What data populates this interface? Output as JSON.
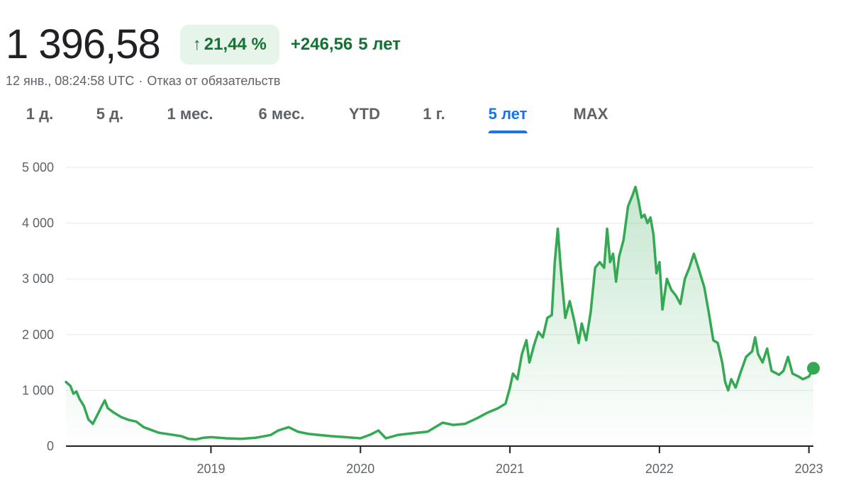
{
  "header": {
    "price": "1 396,58",
    "change_arrow": "↑",
    "change_pct": "21,44 %",
    "change_abs": "+246,56",
    "change_period": "5 лет"
  },
  "subline": {
    "timestamp": "12 янв., 08:24:58 UTC",
    "separator": "·",
    "disclaimer": "Отказ от обязательств"
  },
  "tabs": [
    {
      "label": "1 д.",
      "active": false
    },
    {
      "label": "5 д.",
      "active": false
    },
    {
      "label": "1 мес.",
      "active": false
    },
    {
      "label": "6 мес.",
      "active": false
    },
    {
      "label": "YTD",
      "active": false
    },
    {
      "label": "1 г.",
      "active": false
    },
    {
      "label": "5 лет",
      "active": true
    },
    {
      "label": "MAX",
      "active": false
    }
  ],
  "colors": {
    "line": "#34a853",
    "up_text": "#137333",
    "badge_bg": "#e6f4ea",
    "active_tab": "#1a73e8",
    "grid": "#e8eaed",
    "axis": "#202124"
  },
  "chart_data": {
    "type": "area",
    "title": "",
    "xlabel": "",
    "ylabel": "",
    "ylim": [
      0,
      5000
    ],
    "xlim": [
      2018.03,
      2023.03
    ],
    "y_ticks": [
      {
        "value": 0,
        "label": "0"
      },
      {
        "value": 1000,
        "label": "1 000"
      },
      {
        "value": 2000,
        "label": "2 000"
      },
      {
        "value": 3000,
        "label": "3 000"
      },
      {
        "value": 4000,
        "label": "4 000"
      },
      {
        "value": 5000,
        "label": "5 000"
      }
    ],
    "x_ticks": [
      {
        "value": 2019,
        "label": "2019"
      },
      {
        "value": 2020,
        "label": "2020"
      },
      {
        "value": 2021,
        "label": "2021"
      },
      {
        "value": 2022,
        "label": "2022"
      },
      {
        "value": 2023,
        "label": "2023"
      }
    ],
    "grid": true,
    "series": [
      {
        "values": [
          [
            2018.03,
            1150
          ],
          [
            2018.06,
            1080
          ],
          [
            2018.08,
            940
          ],
          [
            2018.1,
            980
          ],
          [
            2018.12,
            850
          ],
          [
            2018.15,
            720
          ],
          [
            2018.18,
            480
          ],
          [
            2018.21,
            400
          ],
          [
            2018.24,
            560
          ],
          [
            2018.27,
            720
          ],
          [
            2018.29,
            820
          ],
          [
            2018.31,
            680
          ],
          [
            2018.35,
            600
          ],
          [
            2018.4,
            520
          ],
          [
            2018.45,
            470
          ],
          [
            2018.5,
            440
          ],
          [
            2018.55,
            340
          ],
          [
            2018.6,
            290
          ],
          [
            2018.65,
            240
          ],
          [
            2018.7,
            220
          ],
          [
            2018.75,
            200
          ],
          [
            2018.8,
            180
          ],
          [
            2018.85,
            130
          ],
          [
            2018.9,
            120
          ],
          [
            2018.95,
            150
          ],
          [
            2019.0,
            160
          ],
          [
            2019.1,
            140
          ],
          [
            2019.2,
            130
          ],
          [
            2019.3,
            150
          ],
          [
            2019.4,
            200
          ],
          [
            2019.45,
            280
          ],
          [
            2019.52,
            340
          ],
          [
            2019.58,
            260
          ],
          [
            2019.65,
            220
          ],
          [
            2019.72,
            200
          ],
          [
            2019.8,
            180
          ],
          [
            2019.9,
            160
          ],
          [
            2020.0,
            140
          ],
          [
            2020.07,
            210
          ],
          [
            2020.12,
            280
          ],
          [
            2020.17,
            140
          ],
          [
            2020.25,
            200
          ],
          [
            2020.35,
            230
          ],
          [
            2020.45,
            260
          ],
          [
            2020.55,
            420
          ],
          [
            2020.62,
            380
          ],
          [
            2020.7,
            400
          ],
          [
            2020.78,
            500
          ],
          [
            2020.85,
            600
          ],
          [
            2020.92,
            680
          ],
          [
            2020.97,
            760
          ],
          [
            2021.0,
            1050
          ],
          [
            2021.02,
            1300
          ],
          [
            2021.05,
            1200
          ],
          [
            2021.08,
            1650
          ],
          [
            2021.11,
            1900
          ],
          [
            2021.13,
            1500
          ],
          [
            2021.16,
            1800
          ],
          [
            2021.19,
            2050
          ],
          [
            2021.22,
            1950
          ],
          [
            2021.25,
            2300
          ],
          [
            2021.28,
            2350
          ],
          [
            2021.3,
            3300
          ],
          [
            2021.32,
            3900
          ],
          [
            2021.34,
            3200
          ],
          [
            2021.37,
            2300
          ],
          [
            2021.4,
            2600
          ],
          [
            2021.43,
            2250
          ],
          [
            2021.46,
            1850
          ],
          [
            2021.48,
            2200
          ],
          [
            2021.51,
            1900
          ],
          [
            2021.54,
            2400
          ],
          [
            2021.57,
            3200
          ],
          [
            2021.6,
            3300
          ],
          [
            2021.63,
            3200
          ],
          [
            2021.65,
            3900
          ],
          [
            2021.67,
            3300
          ],
          [
            2021.69,
            3450
          ],
          [
            2021.71,
            2950
          ],
          [
            2021.73,
            3400
          ],
          [
            2021.76,
            3700
          ],
          [
            2021.79,
            4300
          ],
          [
            2021.82,
            4500
          ],
          [
            2021.84,
            4650
          ],
          [
            2021.86,
            4400
          ],
          [
            2021.88,
            4100
          ],
          [
            2021.9,
            4150
          ],
          [
            2021.92,
            4000
          ],
          [
            2021.94,
            4100
          ],
          [
            2021.96,
            3800
          ],
          [
            2021.98,
            3100
          ],
          [
            2022.0,
            3300
          ],
          [
            2022.02,
            2450
          ],
          [
            2022.05,
            3000
          ],
          [
            2022.08,
            2800
          ],
          [
            2022.11,
            2700
          ],
          [
            2022.14,
            2550
          ],
          [
            2022.17,
            3000
          ],
          [
            2022.2,
            3200
          ],
          [
            2022.23,
            3450
          ],
          [
            2022.26,
            3200
          ],
          [
            2022.3,
            2850
          ],
          [
            2022.33,
            2400
          ],
          [
            2022.36,
            1900
          ],
          [
            2022.39,
            1850
          ],
          [
            2022.42,
            1500
          ],
          [
            2022.44,
            1150
          ],
          [
            2022.46,
            1000
          ],
          [
            2022.48,
            1200
          ],
          [
            2022.51,
            1050
          ],
          [
            2022.54,
            1300
          ],
          [
            2022.58,
            1600
          ],
          [
            2022.62,
            1700
          ],
          [
            2022.64,
            1950
          ],
          [
            2022.66,
            1650
          ],
          [
            2022.69,
            1500
          ],
          [
            2022.72,
            1750
          ],
          [
            2022.75,
            1350
          ],
          [
            2022.8,
            1280
          ],
          [
            2022.83,
            1350
          ],
          [
            2022.86,
            1600
          ],
          [
            2022.89,
            1300
          ],
          [
            2022.93,
            1250
          ],
          [
            2022.96,
            1200
          ],
          [
            2023.0,
            1250
          ],
          [
            2023.03,
            1396.58
          ]
        ]
      }
    ]
  }
}
